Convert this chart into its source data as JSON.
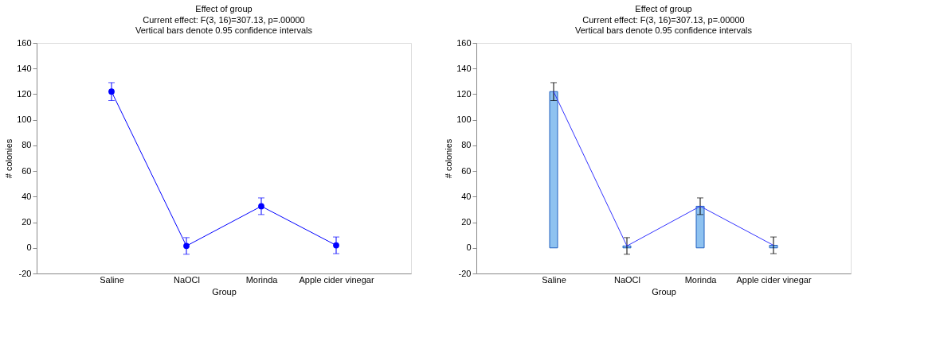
{
  "chart_data": [
    {
      "type": "line",
      "title": "Effect of group",
      "subtitle": "Current effect: F(3, 16)=307.13, p=.00000",
      "annotations": [
        "Vertical bars denote 0.95 confidence intervals"
      ],
      "xlabel": "Group",
      "ylabel": "# colonies",
      "categories": [
        "Saline",
        "NaOCl",
        "Morinda",
        "Apple cider vinegar"
      ],
      "ylim": [
        -20,
        160
      ],
      "yticks": [
        -20,
        0,
        20,
        40,
        60,
        80,
        100,
        120,
        140,
        160
      ],
      "grid": false,
      "marker": "circle",
      "line_style": "solid",
      "series": [
        {
          "color": "#0000ff",
          "values": [
            122,
            1.5,
            32.5,
            2
          ],
          "errors": [
            [
              115,
              129
            ],
            [
              -5,
              8
            ],
            [
              26,
              39
            ],
            [
              -4.5,
              8.5
            ]
          ]
        }
      ]
    },
    {
      "type": "bar",
      "title": "Effect of group",
      "subtitle": "Current effect: F(3, 16)=307.13, p=.00000",
      "annotations": [
        "Vertical bars denote 0.95 confidence intervals"
      ],
      "xlabel": "Group",
      "ylabel": "# colonies",
      "categories": [
        "Saline",
        "NaOCl",
        "Morinda",
        "Apple cider vinegar"
      ],
      "ylim": [
        -20,
        160
      ],
      "yticks": [
        -20,
        0,
        20,
        40,
        60,
        80,
        100,
        120,
        140,
        160
      ],
      "grid": false,
      "marker": "none",
      "line_style": "solid",
      "series": [
        {
          "color": "#8ec2f0",
          "values": [
            122,
            1.5,
            32.5,
            2
          ],
          "errors": [
            [
              115,
              129
            ],
            [
              -5,
              8
            ],
            [
              26,
              39
            ],
            [
              -4.5,
              8.5
            ]
          ]
        },
        {
          "type": "line",
          "color": "#3333ff",
          "values": [
            122,
            1.5,
            32.5,
            2
          ]
        }
      ]
    }
  ]
}
